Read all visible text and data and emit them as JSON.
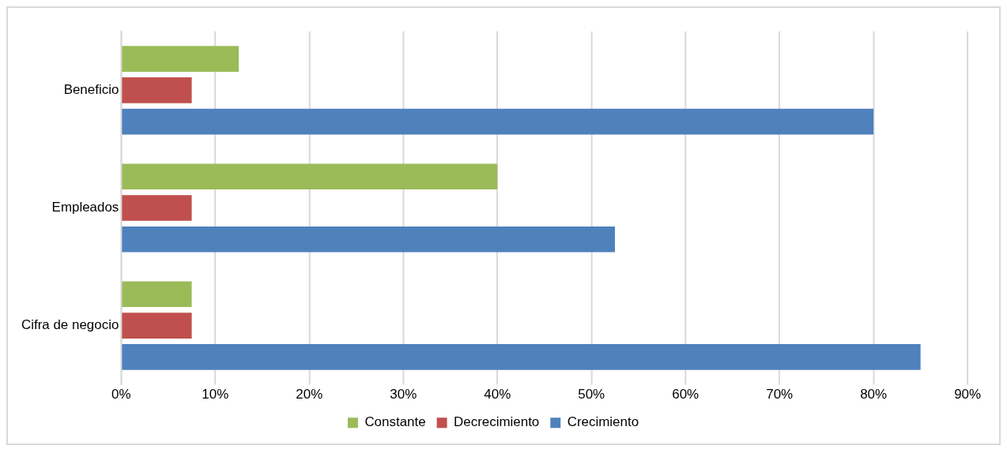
{
  "chart_data": {
    "type": "bar",
    "orientation": "horizontal",
    "categories": [
      "Beneficio",
      "Empleados",
      "Cifra de negocio"
    ],
    "series": [
      {
        "name": "Constante",
        "color": "#9bbb59",
        "values": [
          12.5,
          40,
          7.5
        ]
      },
      {
        "name": "Decrecimiento",
        "color": "#c0504d",
        "values": [
          7.5,
          7.5,
          7.5
        ]
      },
      {
        "name": "Crecimiento",
        "color": "#4f81bd",
        "values": [
          80,
          52.5,
          85
        ]
      }
    ],
    "xlim": [
      0,
      90
    ],
    "xticks": [
      {
        "value": 0,
        "label": "0%"
      },
      {
        "value": 10,
        "label": "10%"
      },
      {
        "value": 20,
        "label": "20%"
      },
      {
        "value": 30,
        "label": "30%"
      },
      {
        "value": 40,
        "label": "40%"
      },
      {
        "value": 50,
        "label": "50%"
      },
      {
        "value": 60,
        "label": "60%"
      },
      {
        "value": 70,
        "label": "70%"
      },
      {
        "value": 80,
        "label": "80%"
      },
      {
        "value": 90,
        "label": "90%"
      }
    ],
    "grid": "x",
    "legend": "bottom"
  }
}
